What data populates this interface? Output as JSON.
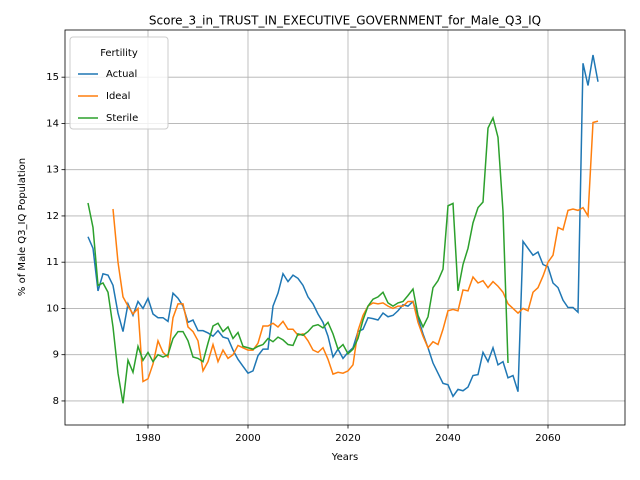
{
  "chart_data": {
    "type": "line",
    "title": "Score_3_in_TRUST_IN_EXECUTIVE_GOVERNMENT_for_Male_Q3_IQ",
    "xlabel": "Years",
    "ylabel": "% of Male Q3_IQ Population",
    "legend_title": "Fertility",
    "legend": "upper left",
    "grid": true,
    "xlim": [
      1963.4,
      2075.4
    ],
    "ylim": [
      7.48,
      16.02
    ],
    "xticks": [
      1980,
      2000,
      2020,
      2040,
      2060
    ],
    "yticks": [
      8,
      9,
      10,
      11,
      12,
      13,
      14,
      15
    ],
    "x": [
      1968,
      1969,
      1970,
      1971,
      1972,
      1973,
      1974,
      1975,
      1976,
      1977,
      1978,
      1979,
      1980,
      1981,
      1982,
      1983,
      1984,
      1985,
      1986,
      1987,
      1988,
      1989,
      1990,
      1991,
      1992,
      1993,
      1994,
      1995,
      1996,
      1997,
      1998,
      1999,
      2000,
      2001,
      2002,
      2003,
      2004,
      2005,
      2006,
      2007,
      2008,
      2009,
      2010,
      2011,
      2012,
      2013,
      2014,
      2015,
      2016,
      2017,
      2018,
      2019,
      2020,
      2021,
      2022,
      2023,
      2024,
      2025,
      2026,
      2027,
      2028,
      2029,
      2030,
      2031,
      2032,
      2033,
      2034,
      2035,
      2036,
      2037,
      2038,
      2039,
      2040,
      2041,
      2042,
      2043,
      2044,
      2045,
      2046,
      2047,
      2048,
      2049,
      2050,
      2051,
      2052,
      2053,
      2054,
      2055,
      2056,
      2057,
      2058,
      2059,
      2060,
      2061,
      2062,
      2063,
      2064,
      2065,
      2066,
      2067,
      2068,
      2069,
      2070
    ],
    "series": [
      {
        "name": "Actual",
        "color": "#1f77b4",
        "values": [
          11.55,
          11.3,
          10.38,
          10.75,
          10.72,
          10.5,
          9.9,
          9.5,
          10.1,
          9.85,
          10.15,
          10.0,
          10.22,
          9.88,
          9.8,
          9.8,
          9.72,
          10.33,
          10.22,
          10.05,
          9.7,
          9.75,
          9.52,
          9.52,
          9.47,
          9.4,
          9.52,
          9.38,
          9.35,
          9.1,
          8.9,
          8.75,
          8.6,
          8.65,
          8.98,
          9.12,
          9.12,
          10.05,
          10.33,
          10.75,
          10.58,
          10.72,
          10.65,
          10.5,
          10.25,
          10.1,
          9.88,
          9.7,
          9.4,
          8.95,
          9.12,
          8.92,
          9.05,
          9.15,
          9.5,
          9.55,
          9.8,
          9.78,
          9.75,
          9.9,
          9.82,
          9.85,
          9.95,
          10.08,
          10.05,
          10.15,
          9.8,
          9.45,
          9.15,
          8.82,
          8.6,
          8.38,
          8.35,
          8.1,
          8.25,
          8.22,
          8.3,
          8.55,
          8.57,
          9.05,
          8.85,
          9.15,
          8.78,
          8.85,
          8.5,
          8.55,
          8.2,
          11.45,
          11.3,
          11.15,
          11.22,
          10.95,
          10.9,
          10.55,
          10.45,
          10.18,
          10.02,
          10.02,
          9.92,
          15.3,
          14.82,
          15.48,
          14.9
        ]
      },
      {
        "name": "Ideal",
        "color": "#ff7f0e",
        "values": [
          null,
          null,
          null,
          null,
          null,
          12.15,
          11.0,
          10.25,
          10.05,
          9.88,
          10.0,
          8.42,
          8.48,
          8.8,
          9.3,
          9.05,
          8.95,
          9.8,
          10.1,
          10.1,
          9.6,
          9.5,
          9.3,
          8.65,
          8.85,
          9.22,
          8.85,
          9.1,
          8.92,
          9.0,
          9.2,
          9.15,
          9.1,
          9.1,
          9.25,
          9.62,
          9.62,
          9.68,
          9.6,
          9.72,
          9.55,
          9.55,
          9.42,
          9.45,
          9.3,
          9.1,
          9.05,
          9.15,
          8.9,
          8.58,
          8.62,
          8.6,
          8.65,
          8.78,
          9.52,
          9.85,
          10.05,
          10.12,
          10.1,
          10.12,
          10.05,
          10.0,
          10.05,
          10.05,
          10.15,
          10.15,
          9.7,
          9.4,
          9.15,
          9.28,
          9.22,
          9.55,
          9.95,
          9.98,
          9.95,
          10.4,
          10.38,
          10.68,
          10.55,
          10.6,
          10.45,
          10.58,
          10.48,
          10.35,
          10.1,
          10.0,
          9.9,
          10.0,
          9.95,
          10.35,
          10.45,
          10.7,
          11.0,
          11.15,
          11.75,
          11.7,
          12.12,
          12.15,
          12.12,
          12.18,
          12.0,
          14.02,
          14.05
        ]
      },
      {
        "name": "Sterile",
        "color": "#2ca02c",
        "values": [
          12.28,
          11.75,
          10.5,
          10.55,
          10.35,
          9.6,
          8.6,
          7.95,
          8.88,
          8.62,
          9.18,
          8.88,
          9.05,
          8.85,
          9.0,
          8.95,
          9.0,
          9.35,
          9.5,
          9.5,
          9.3,
          8.95,
          8.92,
          8.85,
          9.25,
          9.62,
          9.68,
          9.5,
          9.6,
          9.35,
          9.48,
          9.18,
          9.15,
          9.12,
          9.18,
          9.22,
          9.35,
          9.28,
          9.38,
          9.32,
          9.22,
          9.2,
          9.45,
          9.42,
          9.5,
          9.62,
          9.65,
          9.58,
          9.7,
          9.45,
          9.12,
          9.22,
          9.02,
          9.12,
          9.35,
          9.75,
          10.05,
          10.2,
          10.25,
          10.35,
          10.12,
          10.05,
          10.12,
          10.15,
          10.28,
          10.42,
          9.85,
          9.6,
          9.82,
          10.45,
          10.6,
          10.85,
          12.22,
          12.27,
          10.38,
          10.95,
          11.3,
          11.85,
          12.18,
          12.3,
          13.9,
          14.12,
          13.7,
          12.1,
          8.82,
          null,
          null,
          null,
          null,
          null,
          null,
          null,
          null,
          null,
          null,
          null,
          null,
          null,
          null,
          null,
          null,
          null,
          null
        ]
      }
    ]
  }
}
